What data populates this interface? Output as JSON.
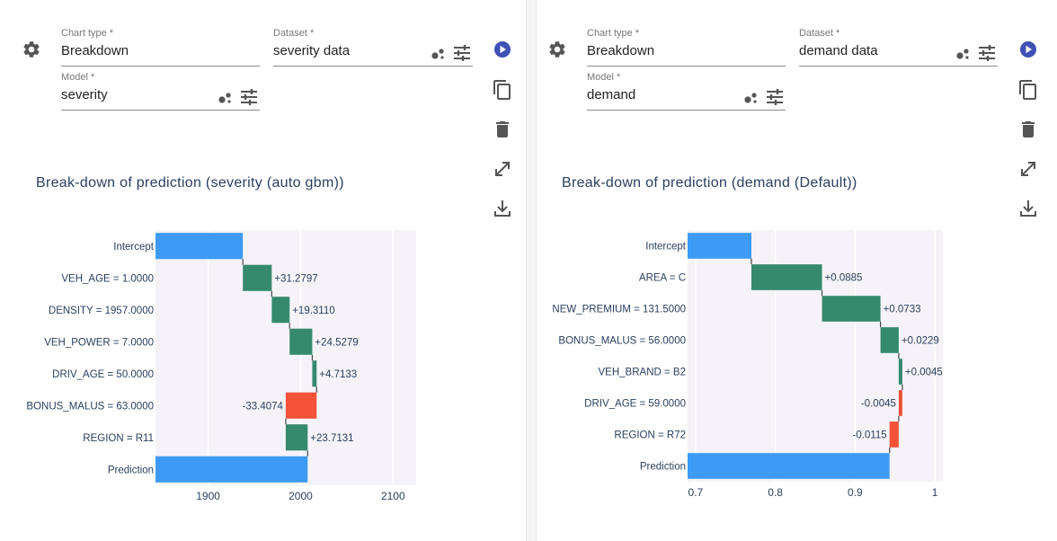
{
  "left": {
    "chart_type_label": "Chart type *",
    "chart_type_value": "Breakdown",
    "dataset_label": "Dataset *",
    "dataset_value": "severity data",
    "model_label": "Model *",
    "model_value": "severity"
  },
  "right": {
    "chart_type_label": "Chart type *",
    "chart_type_value": "Breakdown",
    "dataset_label": "Dataset *",
    "dataset_value": "demand data",
    "model_label": "Model *",
    "model_value": "demand"
  },
  "icons": {
    "settings": "gear-icon",
    "run": "play-icon",
    "copy": "copy-icon",
    "delete": "trash-icon",
    "expand": "expand-icon",
    "download": "download-icon",
    "models": "bubbles-icon",
    "options": "sliders-icon"
  },
  "colors": {
    "positive": "#358a6e",
    "negative": "#f5523a",
    "baseline": "#3d9bf5",
    "plot_bg": "#f5f3f7",
    "accent": "#3f51b5"
  },
  "chart_data": [
    {
      "type": "bar",
      "title": "Break-down of prediction (severity (auto gbm))",
      "variables": [
        "Intercept",
        "VEH_AGE = 1.0000",
        "DENSITY = 1957.0000",
        "VEH_POWER = 7.0000",
        "DRIV_AGE = 50.0000",
        "BONUS_MALUS = 63.0000",
        "REGION = R11",
        "Prediction"
      ],
      "contributions": [
        1937.5,
        31.2797,
        19.311,
        24.5279,
        4.7133,
        -33.4074,
        23.7131,
        2007.6
      ],
      "labels": [
        "",
        "+31.2797",
        "+19.3110",
        "+24.5279",
        "+4.7133",
        "-33.4074",
        "+23.7131",
        ""
      ],
      "xlim": [
        1843,
        2125
      ],
      "xticks": [
        1900,
        2000,
        2100
      ],
      "xtick_labels": [
        "1900",
        "2000",
        "2100"
      ]
    },
    {
      "type": "bar",
      "title": "Break-down of prediction (demand (Default))",
      "variables": [
        "Intercept",
        "AREA = C",
        "NEW_PREMIUM = 131.5000",
        "BONUS_MALUS = 56.0000",
        "VEH_BRAND = B2",
        "DRIV_AGE = 59.0000",
        "REGION = R72",
        "Prediction"
      ],
      "contributions": [
        0.77,
        0.0885,
        0.0733,
        0.0229,
        0.0045,
        -0.0045,
        -0.0115,
        0.9432
      ],
      "labels": [
        "",
        "+0.0885",
        "+0.0733",
        "+0.0229",
        "+0.0045",
        "-0.0045",
        "-0.0115",
        ""
      ],
      "xlim": [
        0.69,
        1.01
      ],
      "xticks": [
        0.7,
        0.8,
        0.9,
        1.0
      ],
      "xtick_labels": [
        "0.7",
        "0.8",
        "0.9",
        "1"
      ]
    }
  ]
}
